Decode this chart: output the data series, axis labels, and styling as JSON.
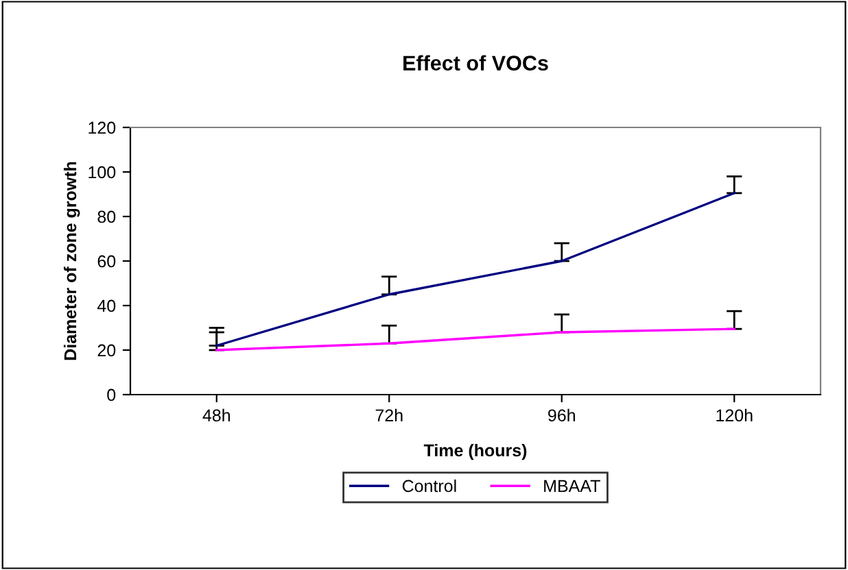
{
  "chart_data": {
    "type": "line",
    "title": "Effect of VOCs",
    "xlabel": "Time (hours)",
    "ylabel": "Diameter of zone growth",
    "categories": [
      "48h",
      "72h",
      "96h",
      "120h"
    ],
    "series": [
      {
        "name": "Control",
        "color": "#000080",
        "values": [
          22,
          45,
          60,
          90.5
        ],
        "errors": [
          [
            22,
            30
          ],
          [
            45,
            53
          ],
          [
            60,
            68
          ],
          [
            90.5,
            98
          ]
        ]
      },
      {
        "name": "MBAAT",
        "color": "#ff00ff",
        "values": [
          20,
          23,
          28,
          29.5
        ],
        "errors": [
          [
            20,
            28
          ],
          [
            23,
            31
          ],
          [
            28,
            36
          ],
          [
            29.5,
            37.5
          ]
        ]
      }
    ],
    "ylim": [
      0,
      120
    ],
    "yticks": [
      0,
      20,
      40,
      60,
      80,
      100,
      120
    ],
    "grid": false,
    "legend": "bottom",
    "marker": "none",
    "line_style": "solid"
  }
}
